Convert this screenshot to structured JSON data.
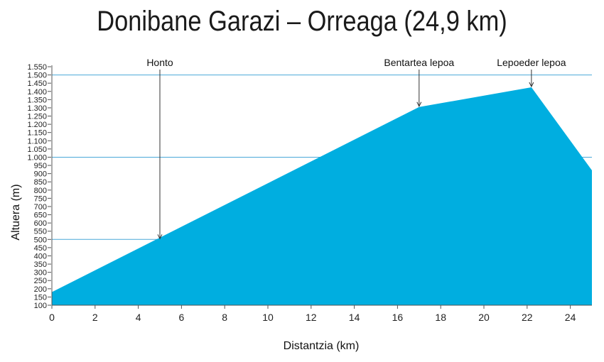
{
  "chart_data": {
    "type": "area",
    "title": "Donibane Garazi – Orreaga (24,9 km)",
    "xlabel": "Distantzia (km)",
    "ylabel": "Altuera (m)",
    "xlim": [
      0,
      25
    ],
    "ylim": [
      100,
      1550
    ],
    "x_ticks": [
      0,
      2,
      4,
      6,
      8,
      10,
      12,
      14,
      16,
      18,
      20,
      22,
      24
    ],
    "y_ticks": [
      100,
      150,
      200,
      250,
      300,
      350,
      400,
      450,
      500,
      550,
      600,
      650,
      700,
      750,
      800,
      850,
      900,
      950,
      1000,
      1050,
      1100,
      1150,
      1200,
      1250,
      1300,
      1350,
      1400,
      1450,
      1500,
      1550
    ],
    "y_tick_labels": [
      "100",
      "150",
      "200",
      "250",
      "300",
      "350",
      "400",
      "450",
      "500",
      "550",
      "600",
      "650",
      "700",
      "750",
      "800",
      "850",
      "900",
      "950",
      "1.000",
      "1.050",
      "1.100",
      "1.150",
      "1.200",
      "1.250",
      "1.300",
      "1.350",
      "1.400",
      "1.450",
      "1.500",
      "1.550"
    ],
    "reference_lines": [
      500,
      1000,
      1500
    ],
    "series": [
      {
        "x": [
          0,
          17.0,
          22.2,
          25.0
        ],
        "y": [
          180,
          1305,
          1425,
          920
        ]
      }
    ],
    "annotations": [
      {
        "label": "Honto",
        "x": 5.0,
        "y": 500
      },
      {
        "label": "Bentartea lepoa",
        "x": 17.0,
        "y": 1305
      },
      {
        "label": "Lepoeder lepoa",
        "x": 22.2,
        "y": 1425
      }
    ],
    "colors": {
      "fill": "#00aee0",
      "ref_line": "#4aa8d8",
      "axis": "#555555"
    }
  }
}
